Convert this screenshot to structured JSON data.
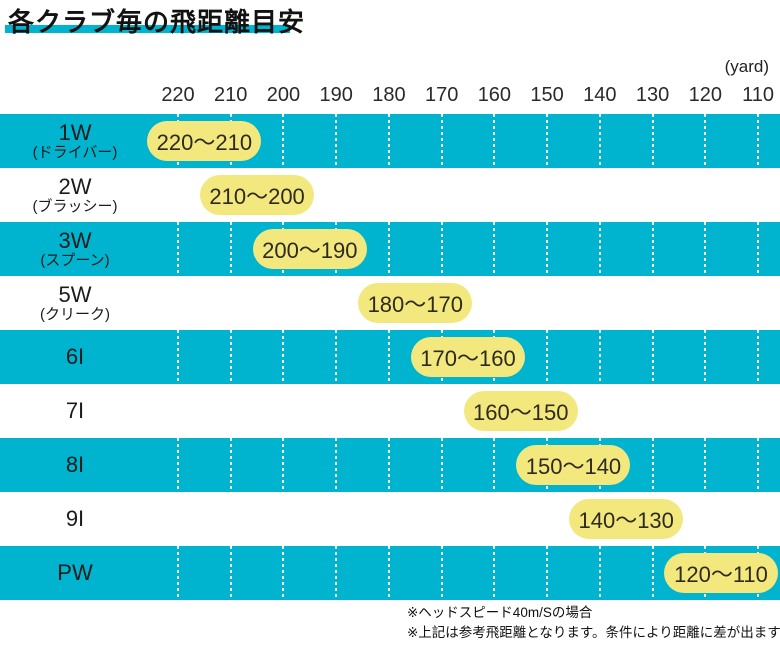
{
  "title": "各クラブ毎の飛距離目安",
  "unit_label": "(yard)",
  "axis": {
    "ticks": [
      "220",
      "210",
      "200",
      "190",
      "180",
      "170",
      "160",
      "150",
      "140",
      "130",
      "120",
      "110"
    ]
  },
  "rows": [
    {
      "club": "1W",
      "sub": "(ドライバー)",
      "range_label": "220〜210",
      "from": 220,
      "to": 210,
      "band": "cyan"
    },
    {
      "club": "2W",
      "sub": "(ブラッシー)",
      "range_label": "210〜200",
      "from": 210,
      "to": 200,
      "band": "white"
    },
    {
      "club": "3W",
      "sub": "(スプーン)",
      "range_label": "200〜190",
      "from": 200,
      "to": 190,
      "band": "cyan"
    },
    {
      "club": "5W",
      "sub": "(クリーク)",
      "range_label": "180〜170",
      "from": 180,
      "to": 170,
      "band": "white"
    },
    {
      "club": "6I",
      "range_label": "170〜160",
      "from": 170,
      "to": 160,
      "band": "cyan"
    },
    {
      "club": "7I",
      "range_label": "160〜150",
      "from": 160,
      "to": 150,
      "band": "white"
    },
    {
      "club": "8I",
      "range_label": "150〜140",
      "from": 150,
      "to": 140,
      "band": "cyan"
    },
    {
      "club": "9I",
      "range_label": "140〜130",
      "from": 140,
      "to": 130,
      "band": "white"
    },
    {
      "club": "PW",
      "range_label": "120〜110",
      "from": 120,
      "to": 110,
      "band": "cyan"
    }
  ],
  "notes": [
    "※ヘッドスピード40m/Sの場合",
    "※上記は参考飛距離となります。条件により距離に差が出ます。"
  ],
  "colors": {
    "band_cyan": "#00b4cf",
    "pill_yellow": "#f3e87d",
    "title_underline": "#00b4cf",
    "text": "#1c1c1c"
  },
  "chart_data": {
    "type": "bar",
    "title": "各クラブ毎の飛距離目安",
    "xlabel": "yard",
    "x_ticks": [
      220,
      210,
      200,
      190,
      180,
      170,
      160,
      150,
      140,
      130,
      120,
      110
    ],
    "x_axis_direction": "descending",
    "categories": [
      "1W (ドライバー)",
      "2W (ブラッシー)",
      "3W (スプーン)",
      "5W (クリーク)",
      "6I",
      "7I",
      "8I",
      "9I",
      "PW"
    ],
    "series": [
      {
        "name": "飛距離レンジ (yard)",
        "ranges": [
          [
            220,
            210
          ],
          [
            210,
            200
          ],
          [
            200,
            190
          ],
          [
            180,
            170
          ],
          [
            170,
            160
          ],
          [
            160,
            150
          ],
          [
            150,
            140
          ],
          [
            140,
            130
          ],
          [
            120,
            110
          ]
        ],
        "labels": [
          "220〜210",
          "210〜200",
          "200〜190",
          "180〜170",
          "170〜160",
          "160〜150",
          "150〜140",
          "140〜130",
          "120〜110"
        ]
      }
    ],
    "legend": null,
    "grid": "vertical-dotted-on-cyan-rows",
    "annotations": [
      "※ヘッドスピード40m/Sの場合",
      "※上記は参考飛距離となります。条件により距離に差が出ます。"
    ]
  }
}
